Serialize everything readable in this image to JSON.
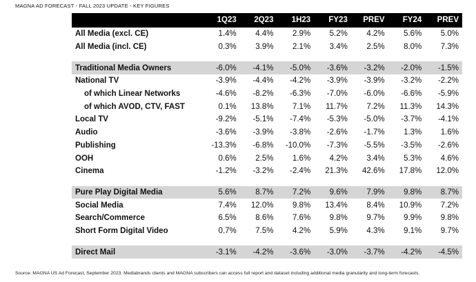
{
  "header": {
    "title": "MAGNA AD FORECAST - FALL 2023 UPDATE - KEY FIGURES"
  },
  "chart_data": {
    "type": "table",
    "columns": [
      "",
      "1Q23",
      "2Q23",
      "1H23",
      "FY23",
      "PREV",
      "FY24",
      "PREV"
    ],
    "rows": [
      {
        "label": "All Media (excl. CE)",
        "values": [
          "1.4%",
          "4.4%",
          "2.9%",
          "5.2%",
          "4.2%",
          "5.6%",
          "5.0%"
        ]
      },
      {
        "label": "All Media (incl. CE)",
        "values": [
          "0.3%",
          "3.9%",
          "2.1%",
          "3.4%",
          "2.5%",
          "8.0%",
          "7.3%"
        ]
      },
      {
        "label": "Traditional Media Owners",
        "values": [
          "-6.0%",
          "-4.1%",
          "-5.0%",
          "-3.6%",
          "-3.2%",
          "-2.0%",
          "-1.5%"
        ]
      },
      {
        "label": "National TV",
        "values": [
          "-3.9%",
          "-4.4%",
          "-4.2%",
          "-3.9%",
          "-3.9%",
          "-3.2%",
          "-2.2%"
        ]
      },
      {
        "label": "of which Linear Networks",
        "values": [
          "-4.6%",
          "-8.2%",
          "-6.3%",
          "-7.0%",
          "-6.0%",
          "-6.6%",
          "-5.9%"
        ]
      },
      {
        "label": "of which AVOD, CTV, FAST",
        "values": [
          "0.1%",
          "13.8%",
          "7.1%",
          "11.7%",
          "7.2%",
          "11.3%",
          "14.3%"
        ]
      },
      {
        "label": "Local TV",
        "values": [
          "-9.2%",
          "-5.1%",
          "-7.4%",
          "-5.3%",
          "-5.0%",
          "-3.7%",
          "-4.1%"
        ]
      },
      {
        "label": "Audio",
        "values": [
          "-3.6%",
          "-3.9%",
          "-3.8%",
          "-2.6%",
          "-1.7%",
          "1.3%",
          "1.6%"
        ]
      },
      {
        "label": "Publishing",
        "values": [
          "-13.3%",
          "-6.8%",
          "-10.0%",
          "-7.3%",
          "-5.5%",
          "-3.5%",
          "-2.6%"
        ]
      },
      {
        "label": "OOH",
        "values": [
          "0.6%",
          "2.5%",
          "1.6%",
          "4.2%",
          "3.4%",
          "5.3%",
          "4.6%"
        ]
      },
      {
        "label": "Cinema",
        "values": [
          "-1.2%",
          "-3.2%",
          "-2.4%",
          "21.3%",
          "42.6%",
          "17.8%",
          "12.0%"
        ]
      },
      {
        "label": "Pure Play Digital Media",
        "values": [
          "5.6%",
          "8.7%",
          "7.2%",
          "9.6%",
          "7.9%",
          "9.8%",
          "8.7%"
        ]
      },
      {
        "label": "Social Media",
        "values": [
          "7.4%",
          "12.0%",
          "9.8%",
          "13.4%",
          "8.4%",
          "10.9%",
          "7.2%"
        ]
      },
      {
        "label": "Search/Commerce",
        "values": [
          "6.5%",
          "8.6%",
          "7.6%",
          "9.8%",
          "9.7%",
          "9.9%",
          "9.8%"
        ]
      },
      {
        "label": "Short Form Digital Video",
        "values": [
          "0.7%",
          "7.5%",
          "4.2%",
          "5.9%",
          "4.3%",
          "9.1%",
          "9.7%"
        ]
      },
      {
        "label": "Direct Mail",
        "values": [
          "-3.1%",
          "-4.2%",
          "-3.6%",
          "-3.0%",
          "-3.7%",
          "-4.2%",
          "-4.5%"
        ]
      }
    ]
  },
  "footer": {
    "source": "Source: MAGNA US Ad Forecast, September 2023. Mediabrands clients and MAGNA subscribers can access full report and dataset including additional media granularity and long-term forecasts."
  }
}
